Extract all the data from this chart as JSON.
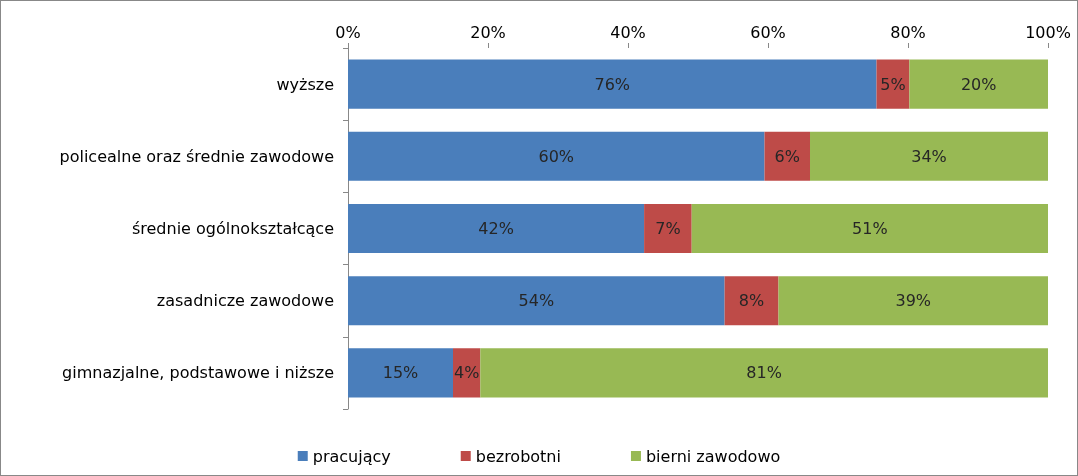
{
  "chart_data": {
    "type": "bar",
    "orientation": "horizontal",
    "stacked": true,
    "categories": [
      "wyższe",
      "policealne oraz średnie zawodowe",
      "średnie ogólnokształcące",
      "zasadnicze zawodowe",
      "gimnazjalne, podstawowe i niższe"
    ],
    "series": [
      {
        "name": "pracujący",
        "color": "#4a7ebb",
        "values": [
          75.5,
          59.5,
          42.3,
          53.8,
          15.0
        ],
        "value_labels": [
          "76%",
          "60%",
          "42%",
          "54%",
          "15%"
        ]
      },
      {
        "name": "bezrobotni",
        "color": "#be4b48",
        "values": [
          4.7,
          6.5,
          6.8,
          7.7,
          3.9
        ],
        "value_labels": [
          "5%",
          "6%",
          "7%",
          "8%",
          "4%"
        ]
      },
      {
        "name": "bierni zawodowo",
        "color": "#98b954",
        "values": [
          19.8,
          34.0,
          50.9,
          38.5,
          81.1
        ],
        "value_labels": [
          "20%",
          "34%",
          "51%",
          "39%",
          "81%"
        ]
      }
    ],
    "xlim": [
      0,
      100
    ],
    "xticks": [
      {
        "value": 0,
        "label": "0%"
      },
      {
        "value": 20,
        "label": "20%"
      },
      {
        "value": 40,
        "label": "40%"
      },
      {
        "value": 60,
        "label": "60%"
      },
      {
        "value": 80,
        "label": "80%"
      },
      {
        "value": 100,
        "label": "100%"
      }
    ],
    "grid": false,
    "legend": "bottom"
  }
}
